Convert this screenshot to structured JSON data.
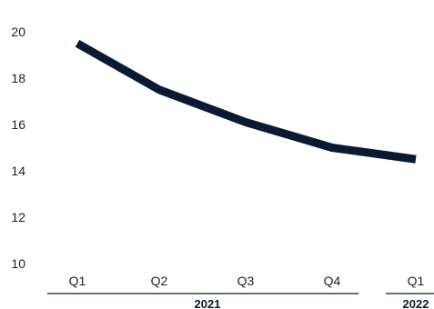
{
  "chart_data": {
    "type": "line",
    "categories": [
      "Q1",
      "Q2",
      "Q3",
      "Q4",
      "Q1"
    ],
    "groups": [
      {
        "label": "2021",
        "categories": [
          0,
          1,
          2,
          3
        ]
      },
      {
        "label": "2022",
        "categories": [
          4
        ]
      }
    ],
    "series": [
      {
        "values": [
          19.5,
          17.5,
          16.1,
          15.0,
          14.5
        ],
        "color": "#0b1a33"
      }
    ],
    "yticks": [
      10,
      12,
      14,
      16,
      18,
      20
    ],
    "ylim": [
      10,
      20
    ],
    "title": "",
    "xlabel": "",
    "ylabel": "",
    "grid": false,
    "legend": "none"
  }
}
